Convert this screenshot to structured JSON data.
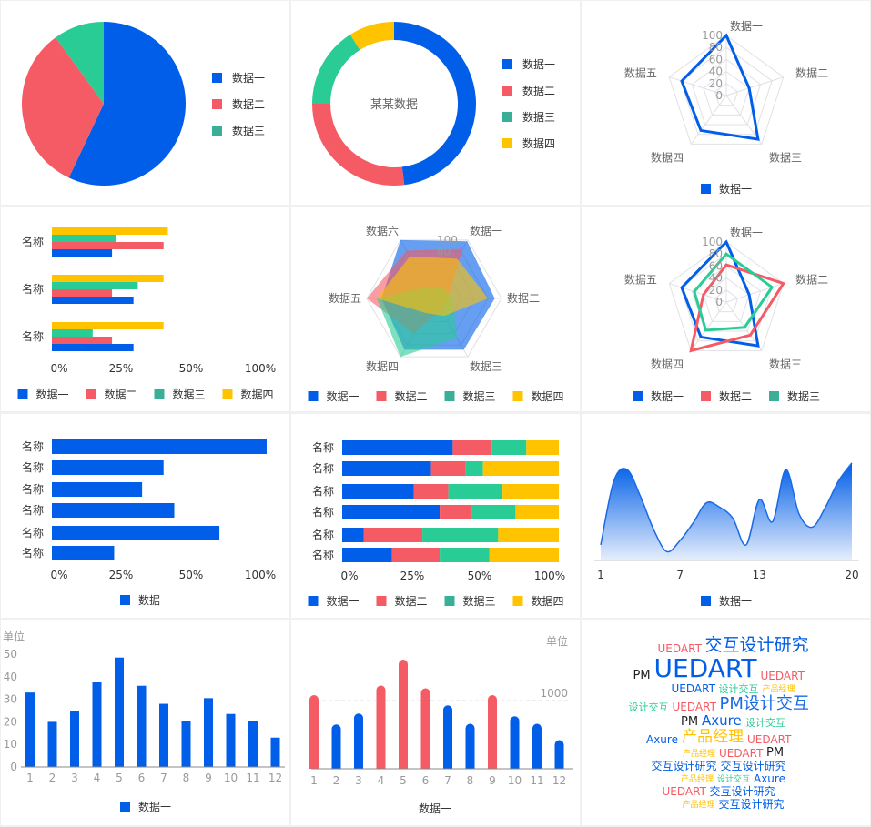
{
  "colors": {
    "blue": "#005ee8",
    "red": "#f55b64",
    "green": "#2acc96",
    "green_legend": "#3aaf97",
    "yellow": "#ffc300",
    "grid": "#e0e0e6",
    "axis": "#999999",
    "text": "#333333"
  },
  "chart_data": [
    {
      "id": "pie",
      "type": "pie",
      "legend": [
        "数据一",
        "数据二",
        "数据三"
      ],
      "values": [
        57,
        33,
        10
      ],
      "legend_position": "right"
    },
    {
      "id": "donut",
      "type": "pie",
      "center_label": "某某数据",
      "legend": [
        "数据一",
        "数据二",
        "数据三",
        "数据四"
      ],
      "values": [
        48,
        27,
        16,
        9
      ],
      "legend_position": "right"
    },
    {
      "id": "radar1",
      "type": "radar",
      "indicators": [
        "数据一",
        "数据二",
        "数据三",
        "数据四",
        "数据五"
      ],
      "ticks": [
        "0",
        "20",
        "40",
        "60",
        "80",
        "100"
      ],
      "max": 100,
      "series": [
        {
          "name": "数据一",
          "values": [
            100,
            40,
            90,
            72,
            78
          ]
        }
      ],
      "legend": [
        "数据一"
      ],
      "legend_position": "bottom"
    },
    {
      "id": "hbar_grouped",
      "type": "bar",
      "orientation": "horizontal",
      "categories": [
        "名称",
        "名称",
        "名称"
      ],
      "xticks": [
        "0%",
        "25%",
        "50%",
        "100%"
      ],
      "series": [
        {
          "name": "数据一",
          "values": [
            28,
            38,
            38
          ]
        },
        {
          "name": "数据二",
          "values": [
            52,
            28,
            28
          ]
        },
        {
          "name": "数据三",
          "values": [
            30,
            40,
            19
          ]
        },
        {
          "name": "数据四",
          "values": [
            54,
            52,
            52
          ]
        }
      ],
      "legend": [
        "数据一",
        "数据二",
        "数据三",
        "数据四"
      ],
      "legend_position": "bottom"
    },
    {
      "id": "radar_area",
      "type": "radar",
      "indicators": [
        "数据一",
        "数据二",
        "数据三",
        "数据四",
        "数据五",
        "数据六"
      ],
      "ticks": [
        "80",
        "100"
      ],
      "max": 100,
      "series": [
        {
          "name": "数据一",
          "values": [
            98,
            90,
            88,
            88,
            78,
            100
          ]
        },
        {
          "name": "数据二",
          "values": [
            85,
            20,
            20,
            60,
            100,
            82
          ]
        },
        {
          "name": "数据三",
          "values": [
            20,
            28,
            68,
            100,
            85,
            20
          ]
        },
        {
          "name": "数据四",
          "values": [
            68,
            80,
            30,
            25,
            85,
            72
          ]
        }
      ],
      "legend": [
        "数据一",
        "数据二",
        "数据三",
        "数据四"
      ],
      "legend_position": "bottom"
    },
    {
      "id": "radar3",
      "type": "radar",
      "indicators": [
        "数据一",
        "数据二",
        "数据三",
        "数据四",
        "数据五"
      ],
      "ticks": [
        "0",
        "20",
        "40",
        "60",
        "80",
        "100"
      ],
      "max": 100,
      "series": [
        {
          "name": "数据一",
          "values": [
            100,
            40,
            90,
            72,
            78
          ]
        },
        {
          "name": "数据二",
          "values": [
            62,
            100,
            68,
            100,
            40
          ]
        },
        {
          "name": "数据三",
          "values": [
            80,
            80,
            52,
            58,
            56
          ]
        }
      ],
      "legend": [
        "数据一",
        "数据二",
        "数据三"
      ],
      "legend_position": "bottom"
    },
    {
      "id": "hbar_single",
      "type": "bar",
      "orientation": "horizontal",
      "categories": [
        "名称",
        "名称",
        "名称",
        "名称",
        "名称",
        "名称"
      ],
      "xticks": [
        "0%",
        "25%",
        "50%",
        "100%"
      ],
      "series": [
        {
          "name": "数据一",
          "values": [
            100,
            52,
            42,
            57,
            78,
            29
          ]
        }
      ],
      "legend": [
        "数据一"
      ],
      "legend_position": "bottom"
    },
    {
      "id": "hbar_stacked",
      "type": "bar",
      "orientation": "horizontal-stacked",
      "categories": [
        "名称",
        "名称",
        "名称",
        "名称",
        "名称",
        "名称"
      ],
      "xticks": [
        "0%",
        "25%",
        "50%",
        "100%"
      ],
      "series": [
        {
          "name": "数据一",
          "values": [
            51,
            41,
            33,
            45,
            10,
            23
          ]
        },
        {
          "name": "数据二",
          "values": [
            18,
            16,
            16,
            15,
            27,
            22
          ]
        },
        {
          "name": "数据三",
          "values": [
            16,
            8,
            25,
            20,
            35,
            23
          ]
        },
        {
          "name": "数据四",
          "values": [
            15,
            35,
            26,
            20,
            28,
            32
          ]
        }
      ],
      "legend": [
        "数据一",
        "数据二",
        "数据三",
        "数据四"
      ],
      "legend_position": "bottom"
    },
    {
      "id": "area",
      "type": "area",
      "x": [
        1,
        2,
        3,
        4,
        5,
        6,
        7,
        8,
        9,
        10,
        11,
        12,
        13,
        14,
        15,
        16,
        17,
        18,
        19,
        20
      ],
      "values": [
        14,
        72,
        82,
        58,
        28,
        8,
        18,
        34,
        52,
        48,
        38,
        14,
        55,
        35,
        82,
        42,
        30,
        48,
        72,
        88
      ],
      "xticks": [
        "1",
        "7",
        "13",
        "20"
      ],
      "legend": [
        "数据一"
      ],
      "legend_position": "bottom"
    },
    {
      "id": "column",
      "type": "bar",
      "orientation": "vertical",
      "ylabel": "单位",
      "categories": [
        "1",
        "2",
        "3",
        "4",
        "5",
        "6",
        "7",
        "8",
        "9",
        "10",
        "11",
        "12"
      ],
      "yticks": [
        "0",
        "10",
        "20",
        "30",
        "40",
        "50"
      ],
      "ylim": [
        0,
        50
      ],
      "series": [
        {
          "name": "数据一",
          "values": [
            33,
            20,
            25,
            37.5,
            48.5,
            36,
            28,
            20.5,
            30.5,
            23.5,
            20.5,
            13
          ]
        }
      ],
      "legend": [
        "数据一"
      ],
      "legend_position": "bottom"
    },
    {
      "id": "column_threshold",
      "type": "bar",
      "orientation": "vertical",
      "ylabel": "单位",
      "threshold_label": "1000",
      "threshold": 1000,
      "categories": [
        "1",
        "2",
        "3",
        "4",
        "5",
        "6",
        "7",
        "8",
        "9",
        "10",
        "11",
        "12"
      ],
      "ylim": [
        0,
        2000
      ],
      "series": [
        {
          "name": "数据一",
          "values": [
            1080,
            650,
            810,
            1220,
            1600,
            1180,
            930,
            660,
            1080,
            770,
            660,
            420
          ]
        }
      ],
      "title": "数据一"
    }
  ],
  "word_cloud": [
    {
      "text": "UEDART",
      "color": "red",
      "size": 12
    },
    {
      "text": "交互设计研究",
      "color": "blue",
      "size": 19
    },
    {
      "text": "PM",
      "color": "dark",
      "size": 13
    },
    {
      "text": "UEDART",
      "color": "blue",
      "size": 28
    },
    {
      "text": "UEDART",
      "color": "red",
      "size": 12
    },
    {
      "text": "设计交互",
      "color": "green",
      "size": 11
    },
    {
      "text": "产品经理",
      "color": "yellow",
      "size": 9
    },
    {
      "text": "UEDART",
      "color": "blue",
      "size": 12
    },
    {
      "text": "设计交互",
      "color": "green",
      "size": 11
    },
    {
      "text": "UEDART",
      "color": "red",
      "size": 12
    },
    {
      "text": "PM设计交互",
      "color": "mixed",
      "size": 18
    },
    {
      "text": "设计交互",
      "color": "green",
      "size": 11
    },
    {
      "text": "PM",
      "color": "dark",
      "size": 13
    },
    {
      "text": "Axure",
      "color": "blue",
      "size": 15
    },
    {
      "text": "Axure",
      "color": "blue",
      "size": 12
    },
    {
      "text": "产品经理",
      "color": "yellow",
      "size": 17
    },
    {
      "text": "UEDART",
      "color": "red",
      "size": 12
    },
    {
      "text": "产品经理",
      "color": "yellow",
      "size": 9
    },
    {
      "text": "UEDART",
      "color": "red",
      "size": 12
    },
    {
      "text": "PM",
      "color": "dark",
      "size": 13
    },
    {
      "text": "交互设计研究",
      "color": "blue",
      "size": 12
    },
    {
      "text": "交互设计研究",
      "color": "blue",
      "size": 12
    },
    {
      "text": "产品经理",
      "color": "yellow",
      "size": 9
    },
    {
      "text": "设计交互",
      "color": "green",
      "size": 9
    },
    {
      "text": "Axure",
      "color": "blue",
      "size": 12
    },
    {
      "text": "UEDART",
      "color": "red",
      "size": 12
    },
    {
      "text": "交互设计研究",
      "color": "blue",
      "size": 12
    },
    {
      "text": "产品经理",
      "color": "yellow",
      "size": 9
    },
    {
      "text": "交互设计研究",
      "color": "blue",
      "size": 12
    }
  ]
}
